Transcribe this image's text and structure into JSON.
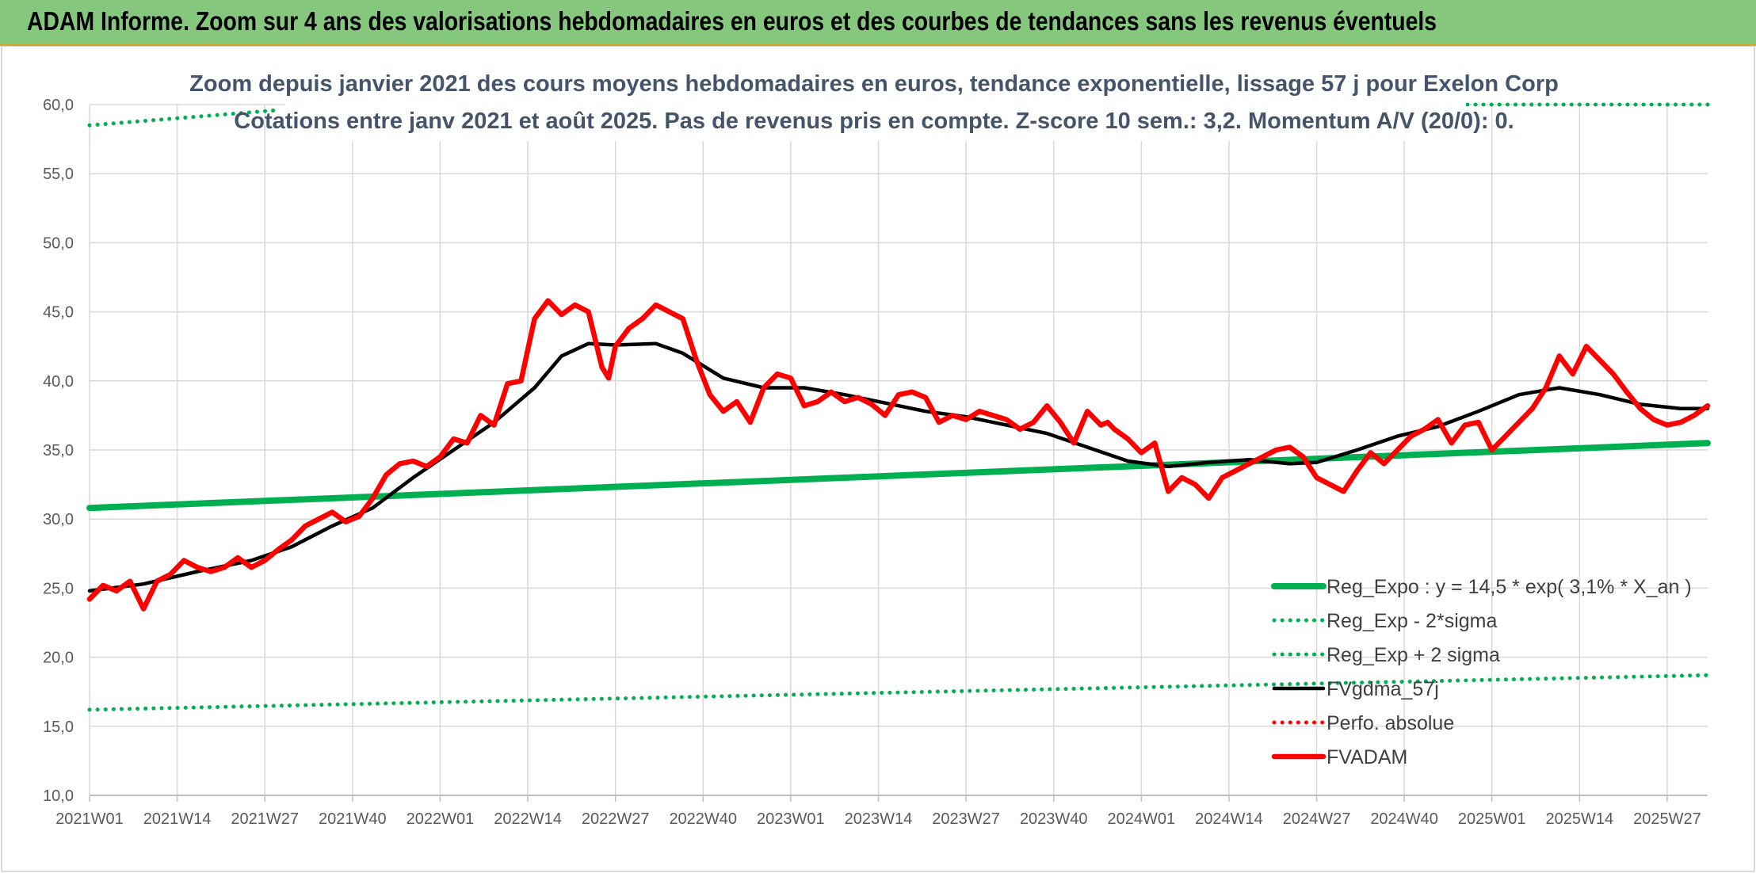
{
  "header": {
    "title": "ADAM Informe. Zoom sur 4 ans des valorisations hebdomadaires en euros et des courbes de tendances sans les revenus éventuels"
  },
  "chart_data": {
    "type": "line",
    "title_line1": "Zoom depuis janvier 2021 des cours moyens hebdomadaires en euros, tendance exponentielle, lissage 57 j pour Exelon Corp",
    "title_line2": "Cotations entre janv 2021 et août 2025. Pas de revenus pris en compte. Z-score 10 sem.: 3,2. Momentum A/V (20/0): 0.",
    "ylim": [
      10,
      60
    ],
    "y_ticks": [
      "10,0",
      "15,0",
      "20,0",
      "25,0",
      "30,0",
      "35,0",
      "40,0",
      "45,0",
      "50,0",
      "55,0",
      "60,0"
    ],
    "x_ticks": [
      "2021W01",
      "2021W14",
      "2021W27",
      "2021W40",
      "2022W01",
      "2022W14",
      "2022W27",
      "2022W40",
      "2023W01",
      "2023W14",
      "2023W27",
      "2023W40",
      "2024W01",
      "2024W14",
      "2024W27",
      "2024W40",
      "2025W01",
      "2025W14",
      "2025W27"
    ],
    "x_range_weeks": [
      0,
      240
    ],
    "grid": true,
    "legend_position": "bottom-right",
    "series": [
      {
        "name": "Reg_Expo : y = 14,5 * exp( 3,1% *  X_an )",
        "color": "#00b050",
        "style": "solid",
        "x": [
          0,
          240
        ],
        "y": [
          30.8,
          35.5
        ]
      },
      {
        "name": "Reg_Exp - 2*sigma",
        "color": "#00b050",
        "style": "dotted",
        "x": [
          0,
          240
        ],
        "y": [
          16.2,
          18.7
        ]
      },
      {
        "name": "Reg_Exp + 2 sigma",
        "color": "#00b050",
        "style": "dotted",
        "x": [
          0,
          28,
          202,
          240
        ],
        "y": [
          58.5,
          59.6,
          60.0,
          60.0
        ]
      },
      {
        "name": "FVgdma_57j",
        "color": "#000000",
        "style": "solid",
        "x": [
          0,
          8,
          16,
          24,
          30,
          36,
          42,
          48,
          54,
          60,
          66,
          70,
          74,
          78,
          84,
          88,
          94,
          100,
          106,
          112,
          118,
          124,
          130,
          136,
          142,
          148,
          154,
          160,
          166,
          172,
          178,
          182,
          188,
          194,
          200,
          206,
          212,
          218,
          224,
          230,
          236,
          240
        ],
        "y": [
          24.8,
          25.3,
          26.2,
          27.0,
          28.0,
          29.5,
          30.8,
          33.0,
          35.0,
          37.0,
          39.5,
          41.8,
          42.7,
          42.6,
          42.7,
          42.0,
          40.2,
          39.5,
          39.5,
          39.0,
          38.4,
          37.8,
          37.4,
          36.8,
          36.2,
          35.2,
          34.2,
          33.8,
          34.1,
          34.3,
          34.0,
          34.1,
          35.0,
          36.0,
          36.7,
          37.8,
          39.0,
          39.5,
          39.0,
          38.3,
          38.0,
          38.0
        ]
      },
      {
        "name": "Perfo. absolue",
        "color": "#ff0000",
        "style": "dotted",
        "x": [],
        "y": []
      },
      {
        "name": "FVADAM",
        "color": "#ff0000",
        "style": "solid",
        "x": [
          0,
          2,
          4,
          6,
          8,
          10,
          12,
          14,
          16,
          18,
          20,
          22,
          24,
          26,
          28,
          30,
          32,
          34,
          36,
          38,
          40,
          42,
          44,
          46,
          48,
          50,
          52,
          54,
          56,
          58,
          60,
          62,
          64,
          66,
          68,
          70,
          72,
          74,
          76,
          77,
          78,
          80,
          82,
          84,
          86,
          88,
          90,
          92,
          94,
          96,
          98,
          100,
          102,
          104,
          106,
          108,
          110,
          112,
          114,
          116,
          118,
          120,
          122,
          124,
          126,
          128,
          130,
          132,
          134,
          136,
          138,
          140,
          142,
          144,
          146,
          148,
          150,
          151,
          152,
          154,
          156,
          158,
          160,
          162,
          164,
          166,
          168,
          170,
          172,
          174,
          176,
          178,
          180,
          182,
          184,
          186,
          188,
          190,
          192,
          194,
          196,
          198,
          200,
          202,
          204,
          206,
          208,
          210,
          212,
          214,
          216,
          218,
          220,
          222,
          224,
          226,
          228,
          230,
          232,
          234,
          236,
          238,
          240
        ],
        "y": [
          24.2,
          25.2,
          24.8,
          25.5,
          23.5,
          25.5,
          26.0,
          27.0,
          26.5,
          26.2,
          26.5,
          27.2,
          26.5,
          27.0,
          27.8,
          28.5,
          29.5,
          30.0,
          30.5,
          29.8,
          30.2,
          31.5,
          33.2,
          34.0,
          34.2,
          33.8,
          34.5,
          35.8,
          35.5,
          37.5,
          36.8,
          39.8,
          40.0,
          44.5,
          45.8,
          44.8,
          45.5,
          45.0,
          41.0,
          40.2,
          42.5,
          43.8,
          44.5,
          45.5,
          45.0,
          44.5,
          41.5,
          39.0,
          37.8,
          38.5,
          37.0,
          39.5,
          40.5,
          40.2,
          38.2,
          38.5,
          39.2,
          38.5,
          38.8,
          38.3,
          37.5,
          39.0,
          39.2,
          38.8,
          37.0,
          37.5,
          37.2,
          37.8,
          37.5,
          37.2,
          36.5,
          37.0,
          38.2,
          37.0,
          35.5,
          37.8,
          36.8,
          37.0,
          36.5,
          35.8,
          34.8,
          35.5,
          32.0,
          33.0,
          32.5,
          31.5,
          33.0,
          33.5,
          34.0,
          34.5,
          35.0,
          35.2,
          34.5,
          33.0,
          32.5,
          32.0,
          33.5,
          34.8,
          34.0,
          35.0,
          36.0,
          36.5,
          37.2,
          35.5,
          36.8,
          37.0,
          35.0,
          36.0,
          37.0,
          38.0,
          39.5,
          41.8,
          40.5,
          42.5,
          41.5,
          40.5,
          39.2,
          38.0,
          37.2,
          36.8,
          37.0,
          37.5,
          38.2
        ]
      }
    ]
  }
}
